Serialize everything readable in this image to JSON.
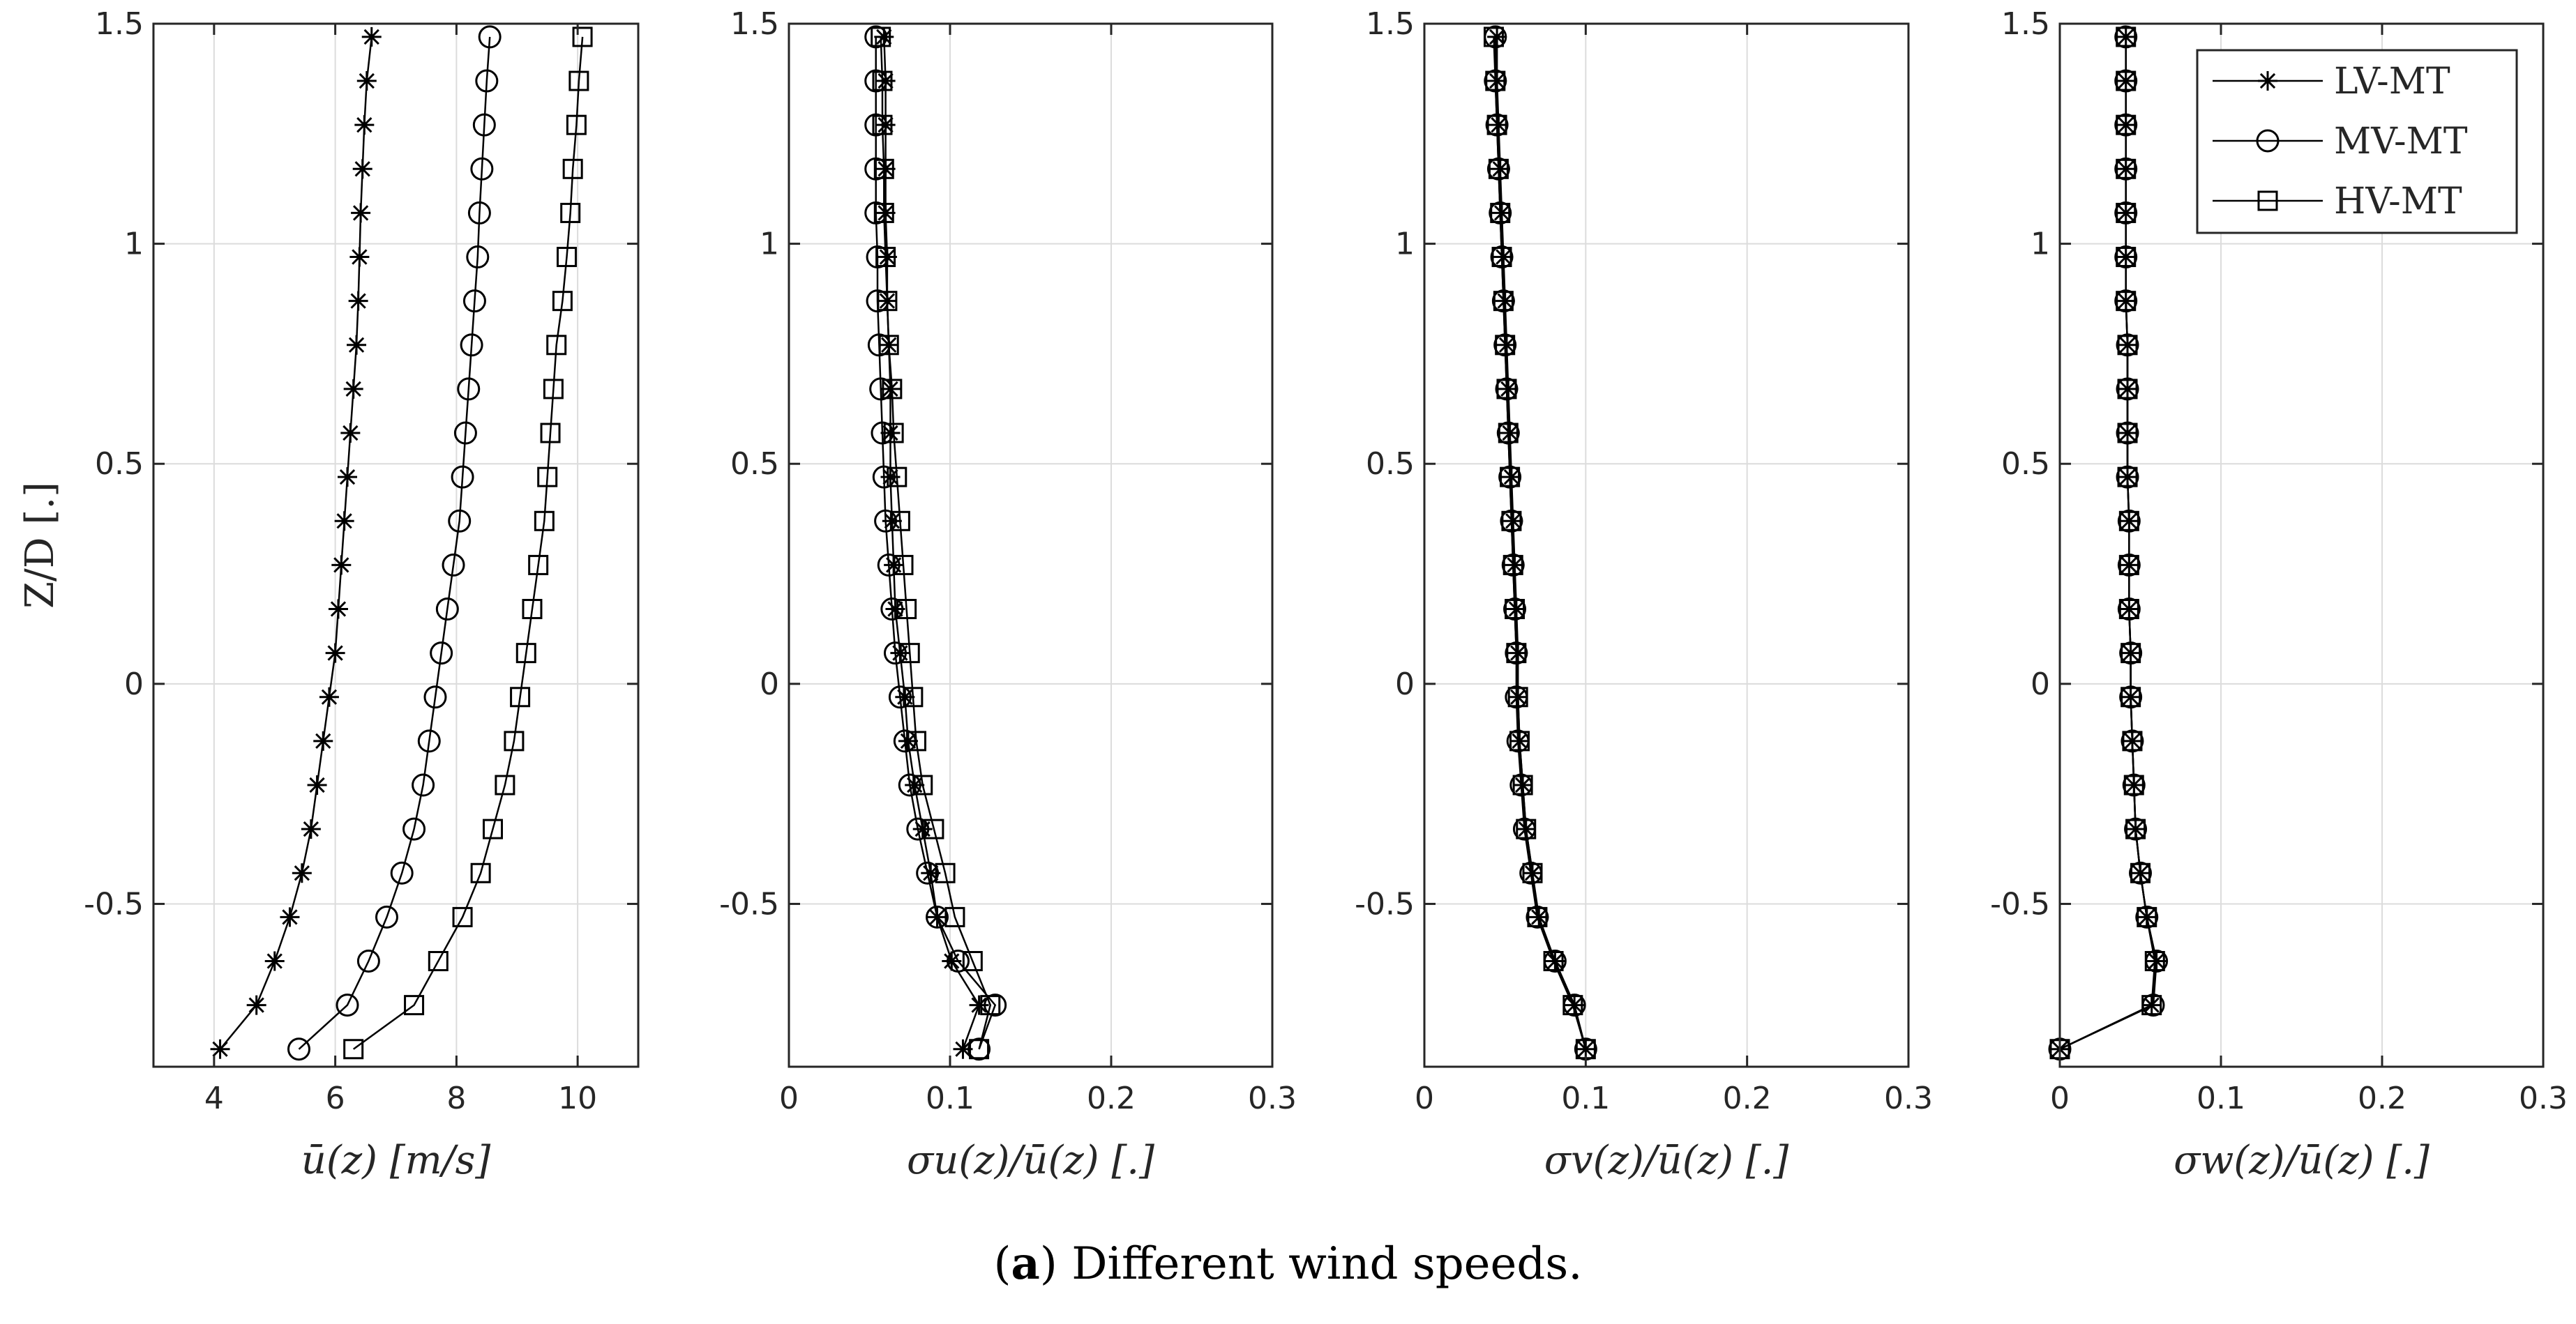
{
  "figure_caption": {
    "label": "(a)",
    "label_bold": "a",
    "text": "Different wind speeds."
  },
  "legend": {
    "placement": "top-right of fourth panel",
    "entries": [
      {
        "name": "LV-MT",
        "marker": "asterisk"
      },
      {
        "name": "MV-MT",
        "marker": "circle"
      },
      {
        "name": "HV-MT",
        "marker": "square"
      }
    ]
  },
  "shared_y": {
    "label": "Z/D [.]",
    "ylim": [
      -0.87,
      1.5
    ],
    "ticks": [
      -0.5,
      0,
      0.5,
      1,
      1.5
    ],
    "tick_labels": [
      "-0.5",
      "0",
      "0.5",
      "1",
      "1.5"
    ],
    "z_levels": [
      -0.83,
      -0.73,
      -0.63,
      -0.53,
      -0.43,
      -0.33,
      -0.23,
      -0.13,
      -0.03,
      0.07,
      0.17,
      0.27,
      0.37,
      0.47,
      0.57,
      0.67,
      0.77,
      0.87,
      0.97,
      1.07,
      1.17,
      1.27,
      1.37,
      1.47
    ]
  },
  "chart_data": [
    {
      "type": "line",
      "panel": 1,
      "xlabel": "ū(z) [m/s]",
      "ylabel": "Z/D [.]",
      "xlim": [
        3,
        11
      ],
      "xticks": [
        4,
        6,
        8,
        10
      ],
      "xtick_labels": [
        "4",
        "6",
        "8",
        "10"
      ],
      "grid": true,
      "series": [
        {
          "name": "LV-MT",
          "values": [
            4.1,
            4.7,
            5.0,
            5.25,
            5.45,
            5.6,
            5.7,
            5.8,
            5.9,
            6.0,
            6.05,
            6.1,
            6.15,
            6.2,
            6.25,
            6.3,
            6.35,
            6.38,
            6.4,
            6.42,
            6.45,
            6.48,
            6.52,
            6.6
          ]
        },
        {
          "name": "MV-MT",
          "values": [
            5.4,
            6.2,
            6.55,
            6.85,
            7.1,
            7.3,
            7.45,
            7.55,
            7.65,
            7.75,
            7.85,
            7.95,
            8.05,
            8.1,
            8.15,
            8.2,
            8.25,
            8.3,
            8.35,
            8.38,
            8.42,
            8.46,
            8.5,
            8.55
          ]
        },
        {
          "name": "HV-MT",
          "values": [
            6.3,
            7.3,
            7.7,
            8.1,
            8.4,
            8.6,
            8.8,
            8.95,
            9.05,
            9.15,
            9.25,
            9.35,
            9.45,
            9.5,
            9.55,
            9.6,
            9.65,
            9.75,
            9.82,
            9.88,
            9.92,
            9.98,
            10.02,
            10.08
          ]
        }
      ]
    },
    {
      "type": "line",
      "panel": 2,
      "xlabel": "σu(z)/ū(z) [.]",
      "xlim": [
        0,
        0.3
      ],
      "xticks": [
        0,
        0.1,
        0.2,
        0.3
      ],
      "xtick_labels": [
        "0",
        "0.1",
        "0.2",
        "0.3"
      ],
      "grid": true,
      "series": [
        {
          "name": "LV-MT",
          "values": [
            0.108,
            0.118,
            0.101,
            0.092,
            0.088,
            0.083,
            0.078,
            0.074,
            0.072,
            0.069,
            0.066,
            0.065,
            0.064,
            0.063,
            0.063,
            0.063,
            0.062,
            0.061,
            0.061,
            0.06,
            0.06,
            0.06,
            0.06,
            0.059
          ]
        },
        {
          "name": "MV-MT",
          "values": [
            0.118,
            0.128,
            0.105,
            0.092,
            0.086,
            0.08,
            0.075,
            0.072,
            0.069,
            0.066,
            0.064,
            0.062,
            0.06,
            0.059,
            0.058,
            0.057,
            0.056,
            0.055,
            0.055,
            0.054,
            0.054,
            0.054,
            0.054,
            0.054
          ]
        },
        {
          "name": "HV-MT",
          "values": [
            0.118,
            0.125,
            0.114,
            0.103,
            0.097,
            0.09,
            0.083,
            0.079,
            0.077,
            0.075,
            0.073,
            0.071,
            0.069,
            0.067,
            0.065,
            0.064,
            0.062,
            0.061,
            0.06,
            0.059,
            0.059,
            0.058,
            0.058,
            0.057
          ]
        }
      ]
    },
    {
      "type": "line",
      "panel": 3,
      "xlabel": "σv(z)/ū(z) [.]",
      "xlim": [
        0,
        0.3
      ],
      "xticks": [
        0,
        0.1,
        0.2,
        0.3
      ],
      "xtick_labels": [
        "0",
        "0.1",
        "0.2",
        "0.3"
      ],
      "grid": true,
      "series": [
        {
          "name": "LV-MT",
          "values": [
            0.1,
            0.093,
            0.081,
            0.071,
            0.067,
            0.063,
            0.061,
            0.059,
            0.058,
            0.058,
            0.057,
            0.056,
            0.055,
            0.054,
            0.053,
            0.052,
            0.051,
            0.05,
            0.049,
            0.048,
            0.047,
            0.046,
            0.045,
            0.045
          ]
        },
        {
          "name": "MV-MT",
          "values": [
            0.1,
            0.093,
            0.081,
            0.07,
            0.066,
            0.062,
            0.06,
            0.058,
            0.057,
            0.057,
            0.056,
            0.055,
            0.054,
            0.053,
            0.052,
            0.051,
            0.05,
            0.049,
            0.048,
            0.047,
            0.046,
            0.045,
            0.044,
            0.044
          ]
        },
        {
          "name": "HV-MT",
          "values": [
            0.1,
            0.092,
            0.08,
            0.07,
            0.067,
            0.063,
            0.061,
            0.059,
            0.058,
            0.057,
            0.056,
            0.055,
            0.054,
            0.053,
            0.052,
            0.051,
            0.05,
            0.049,
            0.048,
            0.047,
            0.046,
            0.045,
            0.044,
            0.043
          ]
        }
      ]
    },
    {
      "type": "line",
      "panel": 4,
      "xlabel": "σw(z)/ū(z) [.]",
      "xlim": [
        0,
        0.3
      ],
      "xticks": [
        0,
        0.1,
        0.2,
        0.3
      ],
      "xtick_labels": [
        "0",
        "0.1",
        "0.2",
        "0.3"
      ],
      "grid": true,
      "series": [
        {
          "name": "LV-MT",
          "values": [
            0.0,
            0.057,
            0.06,
            0.054,
            0.05,
            0.047,
            0.046,
            0.045,
            0.044,
            0.044,
            0.043,
            0.043,
            0.043,
            0.042,
            0.042,
            0.042,
            0.042,
            0.041,
            0.041,
            0.041,
            0.041,
            0.041,
            0.041,
            0.041
          ]
        },
        {
          "name": "MV-MT",
          "values": [
            0.0,
            0.058,
            0.06,
            0.054,
            0.05,
            0.047,
            0.046,
            0.045,
            0.044,
            0.044,
            0.043,
            0.043,
            0.043,
            0.042,
            0.042,
            0.042,
            0.042,
            0.041,
            0.041,
            0.041,
            0.041,
            0.041,
            0.041,
            0.041
          ]
        },
        {
          "name": "HV-MT",
          "values": [
            0.0,
            0.057,
            0.059,
            0.054,
            0.05,
            0.047,
            0.046,
            0.045,
            0.044,
            0.044,
            0.043,
            0.043,
            0.043,
            0.042,
            0.042,
            0.042,
            0.042,
            0.041,
            0.041,
            0.041,
            0.041,
            0.041,
            0.041,
            0.041
          ]
        }
      ]
    }
  ]
}
